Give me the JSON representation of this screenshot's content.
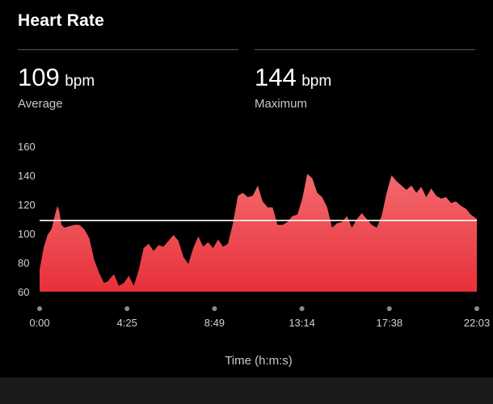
{
  "header": {
    "title": "Heart Rate"
  },
  "stats": [
    {
      "value": "109",
      "unit": "bpm",
      "label": "Average"
    },
    {
      "value": "144",
      "unit": "bpm",
      "label": "Maximum"
    }
  ],
  "colors": {
    "accent": "#e8303a",
    "accent_light": "#f26a6e",
    "average_line": "#ffffff"
  },
  "chart_data": {
    "type": "area",
    "xlabel": "Time (h:m:s)",
    "ylabel": "",
    "ylim": [
      60,
      160
    ],
    "yticks": [
      "160",
      "140",
      "120",
      "100",
      "80",
      "60"
    ],
    "xticks": [
      "0:00",
      "4:25",
      "8:49",
      "13:14",
      "17:38",
      "22:03"
    ],
    "xlim_seconds": [
      0,
      1323
    ],
    "average": 109,
    "series": [
      {
        "x": [
          0,
          12,
          24,
          36,
          48,
          54,
          60,
          66,
          75,
          90,
          105,
          120,
          135,
          150,
          165,
          180,
          195,
          206,
          213,
          225,
          240,
          255,
          270,
          285,
          300,
          315,
          330,
          345,
          360,
          375,
          390,
          405,
          420,
          435,
          450,
          465,
          480,
          495,
          510,
          525,
          540,
          555,
          570,
          585,
          600,
          615,
          630,
          645,
          660,
          675,
          690,
          705,
          720,
          735,
          750,
          765,
          780,
          795,
          810,
          825,
          840,
          855,
          870,
          885,
          900,
          915,
          930,
          945,
          960,
          975,
          990,
          1005,
          1020,
          1035,
          1050,
          1065,
          1080,
          1095,
          1110,
          1125,
          1140,
          1155,
          1170,
          1185,
          1200,
          1215,
          1230,
          1245,
          1260,
          1275,
          1290,
          1305,
          1323
        ],
        "y": [
          75,
          90,
          99,
          103,
          114,
          119,
          115,
          106,
          104,
          105,
          106,
          106,
          103,
          97,
          82,
          73,
          66,
          67,
          69,
          72,
          64,
          66,
          71,
          64,
          75,
          90,
          93,
          88,
          92,
          91,
          95,
          99,
          95,
          84,
          79,
          90,
          98,
          91,
          94,
          90,
          96,
          91,
          93,
          107,
          126,
          128,
          125,
          126,
          133,
          122,
          118,
          118,
          106,
          106,
          108,
          112,
          113,
          124,
          141,
          138,
          128,
          125,
          118,
          104,
          107,
          108,
          112,
          104,
          110,
          114,
          110,
          106,
          104,
          112,
          128,
          140,
          136,
          133,
          130,
          133,
          128,
          132,
          125,
          131,
          126,
          124,
          125,
          121,
          122,
          119,
          117,
          113,
          110
        ]
      }
    ]
  }
}
